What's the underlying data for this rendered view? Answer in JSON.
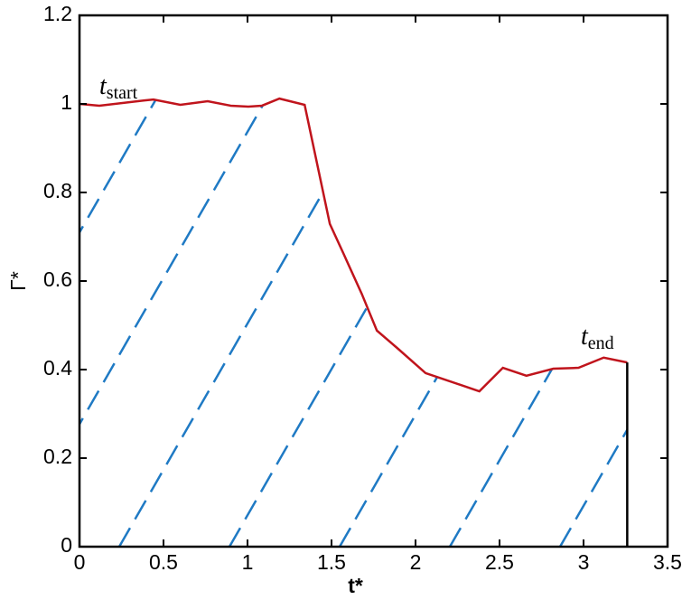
{
  "chart_data": {
    "type": "line",
    "xlabel": "t*",
    "ylabel": "Γ*",
    "x": [
      0,
      0.118,
      0.387,
      0.44,
      0.6,
      0.763,
      0.9,
      1.005,
      1.086,
      1.19,
      1.34,
      1.49,
      1.57,
      1.68,
      1.77,
      1.89,
      2.06,
      2.38,
      2.52,
      2.66,
      2.82,
      2.97,
      3.12,
      3.26
    ],
    "series": [
      {
        "color": "#c0141c",
        "values": [
          1.0,
          0.996,
          1.008,
          1.01,
          0.998,
          1.006,
          0.996,
          0.994,
          0.996,
          1.012,
          0.998,
          0.729,
          0.663,
          0.571,
          0.488,
          0.449,
          0.392,
          0.351,
          0.404,
          0.386,
          0.402,
          0.404,
          0.427,
          0.416
        ]
      }
    ],
    "hatch_color": "#1f7ac4",
    "xlim": [
      0,
      3.5
    ],
    "xticks": [
      0,
      0.5,
      1,
      1.5,
      2,
      2.5,
      3,
      3.5
    ],
    "ylim": [
      0,
      1.2
    ],
    "yticks": [
      0,
      0.2,
      0.4,
      0.6,
      0.8,
      1,
      1.2
    ],
    "annotations": [
      {
        "base": "t",
        "sub": "start"
      },
      {
        "base": "t",
        "sub": "end"
      }
    ]
  }
}
